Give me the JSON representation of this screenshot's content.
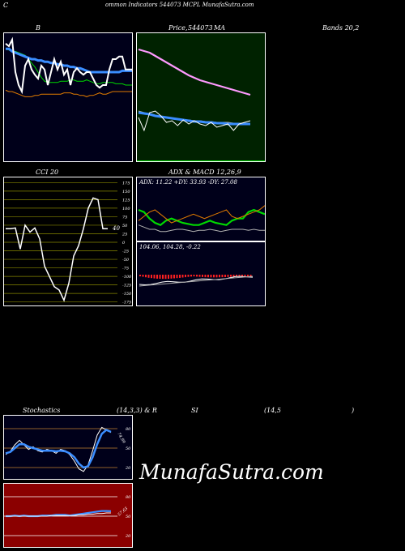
{
  "header": {
    "c": "C",
    "title": "ommon  Indicators 544073 MCPL  MunafaSutra.com"
  },
  "labels": {
    "b": "B",
    "price": "Price,",
    "price_code": "544073",
    "ma": "MA",
    "bands": "Bands 20,2",
    "cci": "CCI 20",
    "adx_macd": "ADX  & MACD 12,26,9",
    "adx_readout": "ADX: 11.22  +DY: 33.93 -DY: 27.08",
    "macd_readout": "104.06,  104.28,  -0.22",
    "cci_value": "40",
    "stoch": "Stochastics",
    "stoch_params": "(14,3,3) & R",
    "si": "SI",
    "rsi_params": "(14,5",
    "close_paren": ")",
    "stoch_value": "74.99",
    "rsi_value": "57.63"
  },
  "watermark": "MunafaSutra.com",
  "colors": {
    "panel_bg_dark": "#00001a",
    "panel_bg_green": "#002200",
    "panel_bg_red": "#8b0000",
    "blue": "#3a8dff",
    "green": "#00d800",
    "orange": "#e07a00",
    "white": "#ffffff",
    "pink": "#ff9aff",
    "grid_olive": "#888800",
    "grid_orange": "#c08030"
  },
  "chart_data": [
    {
      "type": "line",
      "title": "B",
      "series": [
        {
          "values": [
            88,
            87,
            86,
            86,
            85,
            84,
            83,
            80,
            77,
            74,
            70,
            66,
            63,
            62,
            62,
            62,
            62,
            63,
            63,
            63,
            64,
            64,
            63,
            63,
            63,
            64,
            63,
            62,
            61,
            61,
            62,
            62,
            62,
            62,
            61,
            61,
            61,
            60,
            60,
            60
          ]
        },
        {
          "values": [
            88,
            88,
            86,
            85,
            84,
            83,
            82,
            81,
            80,
            80,
            79,
            79,
            78,
            78,
            77,
            77,
            76,
            76,
            75,
            75,
            74,
            74,
            73,
            73,
            72,
            71,
            70,
            70,
            70,
            70,
            70,
            70,
            70,
            70,
            70,
            70,
            71,
            71,
            71,
            71
          ]
        },
        {
          "values": [
            92,
            90,
            95,
            70,
            60,
            55,
            75,
            80,
            72,
            68,
            65,
            75,
            72,
            60,
            70,
            80,
            72,
            78,
            68,
            72,
            60,
            70,
            73,
            70,
            68,
            70,
            70,
            65,
            60,
            58,
            60,
            60,
            72,
            80,
            80,
            82,
            82,
            72,
            72,
            72
          ]
        },
        {
          "values": [
            56,
            55,
            55,
            54,
            53,
            52,
            51,
            51,
            51,
            52,
            52,
            53,
            53,
            53,
            53,
            53,
            53,
            53,
            54,
            54,
            54,
            53,
            53,
            52,
            52,
            51,
            52,
            52,
            53,
            54,
            53,
            53,
            54,
            55,
            55,
            55,
            55,
            55,
            55,
            55
          ]
        }
      ]
    },
    {
      "type": "line",
      "title": "Price, 544073 MA",
      "series": [
        {
          "values": [
            180,
            178,
            176,
            172,
            168,
            164,
            160,
            156,
            152,
            148,
            145,
            142,
            140,
            138,
            136,
            134,
            132,
            130,
            128,
            126,
            124
          ]
        },
        {
          "values": [
            104,
            102,
            100,
            98,
            97,
            96,
            95,
            94,
            93,
            93,
            92,
            92,
            91,
            91,
            90,
            90,
            90,
            89,
            89,
            89,
            89
          ]
        },
        {
          "values": [
            102,
            101,
            100,
            98,
            97,
            96,
            95,
            94,
            93,
            92,
            91,
            91,
            90,
            90,
            89,
            89,
            88,
            88,
            88,
            88,
            88
          ]
        },
        {
          "values": [
            96,
            80,
            102,
            104,
            98,
            90,
            92,
            86,
            93,
            88,
            92,
            88,
            86,
            90,
            84,
            86,
            88,
            80,
            88,
            90,
            92
          ]
        }
      ]
    },
    {
      "type": "line",
      "title": "CCI 20",
      "yticks": [
        175,
        150,
        125,
        100,
        75,
        50,
        25,
        0,
        -25,
        -50,
        -75,
        -100,
        -125,
        -150,
        -175
      ],
      "series": [
        {
          "values": [
            40,
            40,
            42,
            -20,
            50,
            30,
            42,
            10,
            -70,
            -100,
            -130,
            -140,
            -170,
            -120,
            -40,
            -10,
            40,
            100,
            130,
            125,
            40,
            40
          ]
        }
      ]
    },
    {
      "type": "line",
      "title": "ADX & MACD 12,26,9",
      "adx": {
        "ADX": 11.22,
        "+DY": 33.93,
        "-DY": 27.08
      },
      "macd": {
        "macd": 104.06,
        "signal": 104.28,
        "histogram": -0.22
      },
      "series": [
        {
          "values": [
            30,
            28,
            22,
            18,
            16,
            20,
            22,
            20,
            18,
            17,
            16,
            16,
            18,
            20,
            18,
            17,
            16,
            20,
            22,
            22,
            28,
            30,
            28,
            26
          ]
        },
        {
          "values": [
            20,
            24,
            28,
            30,
            26,
            22,
            18,
            20,
            22,
            24,
            26,
            24,
            22,
            24,
            26,
            28,
            30,
            24,
            22,
            24,
            26,
            28,
            30,
            34
          ]
        },
        {
          "values": [
            16,
            14,
            12,
            12,
            10,
            10,
            11,
            12,
            12,
            11,
            10,
            11,
            11,
            12,
            11,
            10,
            11,
            12,
            12,
            12,
            11,
            12,
            11,
            11
          ]
        }
      ]
    },
    {
      "type": "line",
      "title": "Stochastics (14,3,3)",
      "yticks": [
        80,
        50,
        20
      ],
      "series": [
        {
          "values": [
            40,
            45,
            55,
            62,
            55,
            48,
            52,
            46,
            44,
            48,
            46,
            42,
            48,
            46,
            40,
            30,
            18,
            14,
            24,
            46,
            70,
            82,
            78,
            74
          ]
        },
        {
          "values": [
            42,
            44,
            50,
            56,
            56,
            52,
            50,
            48,
            46,
            46,
            46,
            45,
            46,
            45,
            42,
            36,
            26,
            20,
            22,
            36,
            56,
            72,
            78,
            75
          ]
        }
      ]
    },
    {
      "type": "line",
      "title": "RSI (14,5)",
      "yticks": [
        80,
        50,
        20
      ],
      "series": [
        {
          "values": [
            50,
            50,
            51,
            50,
            51,
            50,
            50,
            50,
            51,
            51,
            51,
            52,
            52,
            52,
            51,
            52,
            53,
            54,
            55,
            56,
            57,
            58,
            58,
            57.63
          ]
        },
        {
          "values": [
            50,
            50,
            50,
            50,
            50,
            50,
            50,
            50,
            50,
            50,
            51,
            51,
            51,
            51,
            51,
            51,
            52,
            52,
            53,
            53,
            54,
            54,
            55,
            55
          ]
        }
      ]
    }
  ]
}
